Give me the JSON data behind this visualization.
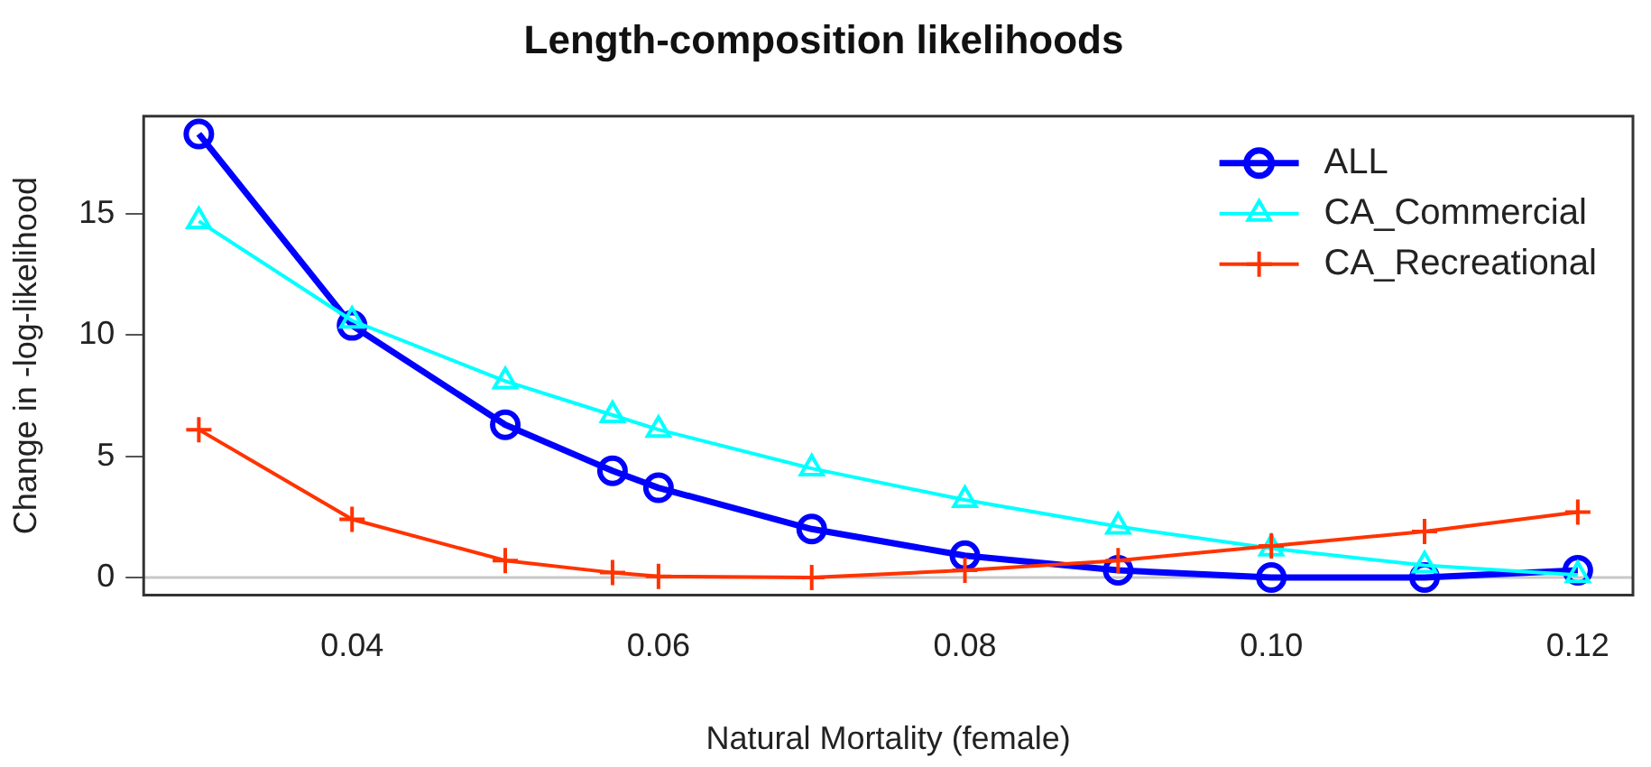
{
  "chart_data": {
    "type": "line",
    "title": "Length-composition likelihoods",
    "xlabel": "Natural Mortality (female)",
    "ylabel": "Change in -log-likelihood",
    "x": [
      0.03,
      0.04,
      0.05,
      0.057,
      0.06,
      0.07,
      0.08,
      0.09,
      0.1,
      0.11,
      0.12
    ],
    "series": [
      {
        "name": "ALL",
        "color": "#0000ff",
        "marker": "circle",
        "values": [
          18.3,
          10.4,
          6.3,
          4.4,
          3.7,
          2.0,
          0.9,
          0.3,
          0.0,
          0.0,
          0.3
        ]
      },
      {
        "name": "CA_Commercial",
        "color": "#00ffff",
        "marker": "triangle",
        "values": [
          14.7,
          10.6,
          8.1,
          6.7,
          6.1,
          4.5,
          3.2,
          2.1,
          1.2,
          0.5,
          0.1
        ]
      },
      {
        "name": "CA_Recreational",
        "color": "#ff3300",
        "marker": "cross",
        "values": [
          6.1,
          2.4,
          0.7,
          0.2,
          0.05,
          0.0,
          0.3,
          0.7,
          1.3,
          1.9,
          2.7
        ]
      }
    ],
    "xlim": [
      0.0264,
      0.1236
    ],
    "xticks": [
      0.04,
      0.06,
      0.08,
      {
        "value": 0.1,
        "label": "0.10"
      },
      0.12
    ],
    "ylim": [
      -0.73,
      19.03
    ],
    "yticks": [
      0,
      5,
      10,
      15
    ],
    "ref_lines": [
      {
        "axis": "y",
        "value": 0,
        "color": "#c8c8c8"
      }
    ],
    "grid": false,
    "legend": "top right",
    "line_style": "solid"
  }
}
